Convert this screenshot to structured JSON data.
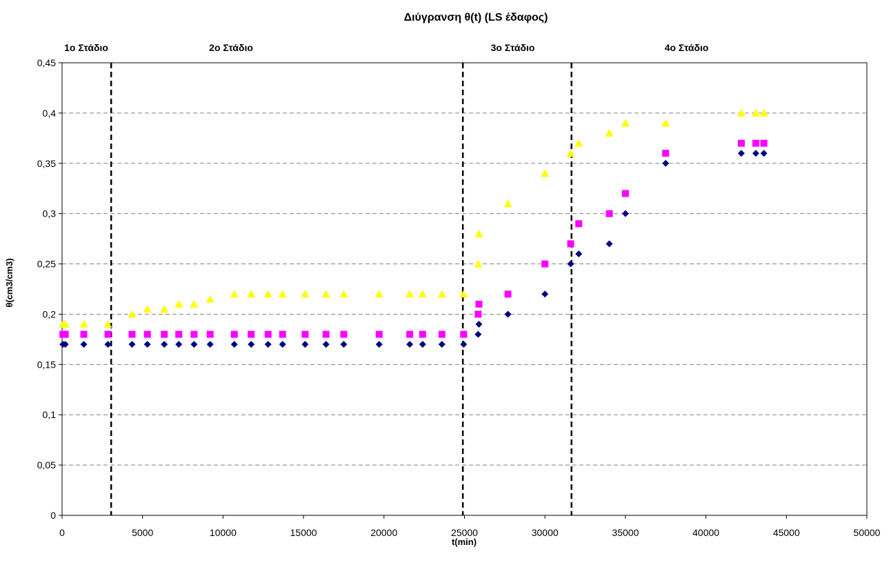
{
  "chart_data": {
    "type": "scatter",
    "title": "Διύγρανση θ(t) (LS έδαφος)",
    "xlabel": "t(min)",
    "ylabel": "θ(cm3/cm3)",
    "xlim": [
      0,
      50000
    ],
    "ylim": [
      0,
      0.45
    ],
    "x_ticks": [
      0,
      5000,
      10000,
      15000,
      20000,
      25000,
      30000,
      35000,
      40000,
      45000,
      50000
    ],
    "y_ticks": [
      0,
      0.05,
      0.1,
      0.15,
      0.2,
      0.25,
      0.3,
      0.35,
      0.4,
      0.45
    ],
    "x_tick_labels": [
      "0",
      "5000",
      "10000",
      "15000",
      "20000",
      "25000",
      "30000",
      "35000",
      "40000",
      "45000",
      "50000"
    ],
    "y_tick_labels": [
      "0",
      "0,05",
      "0,1",
      "0,15",
      "0,2",
      "0,25",
      "0,3",
      "0,35",
      "0,4",
      "0,45"
    ],
    "grid": "horizontal dashed",
    "legend": "none",
    "stage_lines": [
      3050,
      24900,
      31650
    ],
    "stage_labels": [
      {
        "text": "1ο Στάδιο",
        "x": 1500
      },
      {
        "text": "2ο Στάδιο",
        "x": 10500
      },
      {
        "text": "3ο Στάδιο",
        "x": 28000
      },
      {
        "text": "4ο Στάδιο",
        "x": 38800
      }
    ],
    "series": [
      {
        "marker": "diamond",
        "color": "#000080",
        "points": [
          [
            50,
            0.17
          ],
          [
            200,
            0.17
          ],
          [
            1350,
            0.17
          ],
          [
            2850,
            0.17
          ],
          [
            4350,
            0.17
          ],
          [
            5300,
            0.17
          ],
          [
            6350,
            0.17
          ],
          [
            7250,
            0.17
          ],
          [
            8200,
            0.17
          ],
          [
            9200,
            0.17
          ],
          [
            10700,
            0.17
          ],
          [
            11750,
            0.17
          ],
          [
            12800,
            0.17
          ],
          [
            13700,
            0.17
          ],
          [
            15100,
            0.17
          ],
          [
            16400,
            0.17
          ],
          [
            17500,
            0.17
          ],
          [
            19700,
            0.17
          ],
          [
            21600,
            0.17
          ],
          [
            22400,
            0.17
          ],
          [
            23600,
            0.17
          ],
          [
            24950,
            0.17
          ],
          [
            25850,
            0.18
          ],
          [
            25900,
            0.19
          ],
          [
            27700,
            0.2
          ],
          [
            30000,
            0.22
          ],
          [
            31600,
            0.25
          ],
          [
            32100,
            0.26
          ],
          [
            34000,
            0.27
          ],
          [
            35000,
            0.3
          ],
          [
            37500,
            0.35
          ],
          [
            42200,
            0.36
          ],
          [
            43100,
            0.36
          ],
          [
            43600,
            0.36
          ]
        ]
      },
      {
        "marker": "square",
        "color": "#FF00FF",
        "points": [
          [
            50,
            0.18
          ],
          [
            200,
            0.18
          ],
          [
            1350,
            0.18
          ],
          [
            2850,
            0.18
          ],
          [
            4350,
            0.18
          ],
          [
            5300,
            0.18
          ],
          [
            6350,
            0.18
          ],
          [
            7250,
            0.18
          ],
          [
            8200,
            0.18
          ],
          [
            9200,
            0.18
          ],
          [
            10700,
            0.18
          ],
          [
            11750,
            0.18
          ],
          [
            12800,
            0.18
          ],
          [
            13700,
            0.18
          ],
          [
            15100,
            0.18
          ],
          [
            16400,
            0.18
          ],
          [
            17500,
            0.18
          ],
          [
            19700,
            0.18
          ],
          [
            21600,
            0.18
          ],
          [
            22400,
            0.18
          ],
          [
            23600,
            0.18
          ],
          [
            24950,
            0.18
          ],
          [
            25850,
            0.2
          ],
          [
            25900,
            0.21
          ],
          [
            27700,
            0.22
          ],
          [
            30000,
            0.25
          ],
          [
            31600,
            0.27
          ],
          [
            32100,
            0.29
          ],
          [
            34000,
            0.3
          ],
          [
            35000,
            0.32
          ],
          [
            37500,
            0.36
          ],
          [
            42200,
            0.37
          ],
          [
            43100,
            0.37
          ],
          [
            43600,
            0.37
          ]
        ]
      },
      {
        "marker": "triangle",
        "color": "#FFFF00",
        "points": [
          [
            50,
            0.19
          ],
          [
            200,
            0.19
          ],
          [
            1350,
            0.19
          ],
          [
            2850,
            0.19
          ],
          [
            4350,
            0.2
          ],
          [
            5300,
            0.205
          ],
          [
            6350,
            0.205
          ],
          [
            7250,
            0.21
          ],
          [
            8200,
            0.21
          ],
          [
            9200,
            0.215
          ],
          [
            10700,
            0.22
          ],
          [
            11750,
            0.22
          ],
          [
            12800,
            0.22
          ],
          [
            13700,
            0.22
          ],
          [
            15100,
            0.22
          ],
          [
            16400,
            0.22
          ],
          [
            17500,
            0.22
          ],
          [
            19700,
            0.22
          ],
          [
            21600,
            0.22
          ],
          [
            22400,
            0.22
          ],
          [
            23600,
            0.22
          ],
          [
            24950,
            0.22
          ],
          [
            25850,
            0.25
          ],
          [
            25900,
            0.28
          ],
          [
            27700,
            0.31
          ],
          [
            30000,
            0.34
          ],
          [
            31600,
            0.36
          ],
          [
            32100,
            0.37
          ],
          [
            34000,
            0.38
          ],
          [
            35000,
            0.39
          ],
          [
            37500,
            0.39
          ],
          [
            42200,
            0.4
          ],
          [
            43100,
            0.4
          ],
          [
            43600,
            0.4
          ]
        ]
      }
    ]
  }
}
